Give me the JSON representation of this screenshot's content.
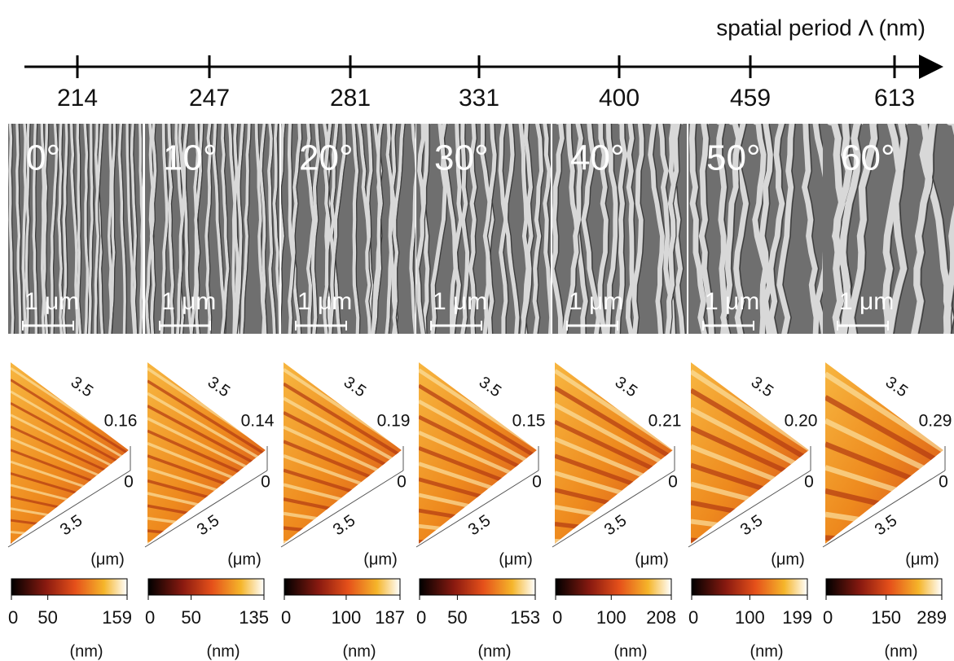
{
  "axis": {
    "label": "spatial period Λ (nm)",
    "periods": [
      214,
      247,
      281,
      331,
      400,
      459,
      613
    ]
  },
  "panels": [
    {
      "angle": "0°",
      "scale": "1 μm",
      "afm": {
        "side_top": "3.5",
        "side_bottom": "3.5",
        "height": "0.16",
        "zero": "0",
        "unit": "(μm)"
      },
      "colorbar": {
        "ticks": [
          0,
          50,
          159
        ],
        "unit": "(nm)"
      }
    },
    {
      "angle": "10°",
      "scale": "1 μm",
      "afm": {
        "side_top": "3.5",
        "side_bottom": "3.5",
        "height": "0.14",
        "zero": "0",
        "unit": "(μm)"
      },
      "colorbar": {
        "ticks": [
          0,
          50,
          135
        ],
        "unit": "(nm)"
      }
    },
    {
      "angle": "20°",
      "scale": "1 μm",
      "afm": {
        "side_top": "3.5",
        "side_bottom": "3.5",
        "height": "0.19",
        "zero": "0",
        "unit": "(μm)"
      },
      "colorbar": {
        "ticks": [
          0,
          100,
          187
        ],
        "unit": "(nm)"
      }
    },
    {
      "angle": "30°",
      "scale": "1 μm",
      "afm": {
        "side_top": "3.5",
        "side_bottom": "3.5",
        "height": "0.15",
        "zero": "0",
        "unit": "(μm)"
      },
      "colorbar": {
        "ticks": [
          0,
          50,
          153
        ],
        "unit": "(nm)"
      }
    },
    {
      "angle": "40°",
      "scale": "1 μm",
      "afm": {
        "side_top": "3.5",
        "side_bottom": "3.5",
        "height": "0.21",
        "zero": "0",
        "unit": "(μm)"
      },
      "colorbar": {
        "ticks": [
          0,
          100,
          208
        ],
        "unit": "(nm)"
      }
    },
    {
      "angle": "50°",
      "scale": "1 μm",
      "afm": {
        "side_top": "3.5",
        "side_bottom": "3.5",
        "height": "0.20",
        "zero": "0",
        "unit": "(μm)"
      },
      "colorbar": {
        "ticks": [
          0,
          100,
          199
        ],
        "unit": "(nm)"
      }
    },
    {
      "angle": "60°",
      "scale": "1 μm",
      "afm": {
        "side_top": "3.5",
        "side_bottom": "3.5",
        "height": "0.29",
        "zero": "0",
        "unit": "(μm)"
      },
      "colorbar": {
        "ticks": [
          0,
          150,
          289
        ],
        "unit": "(nm)"
      }
    }
  ]
}
